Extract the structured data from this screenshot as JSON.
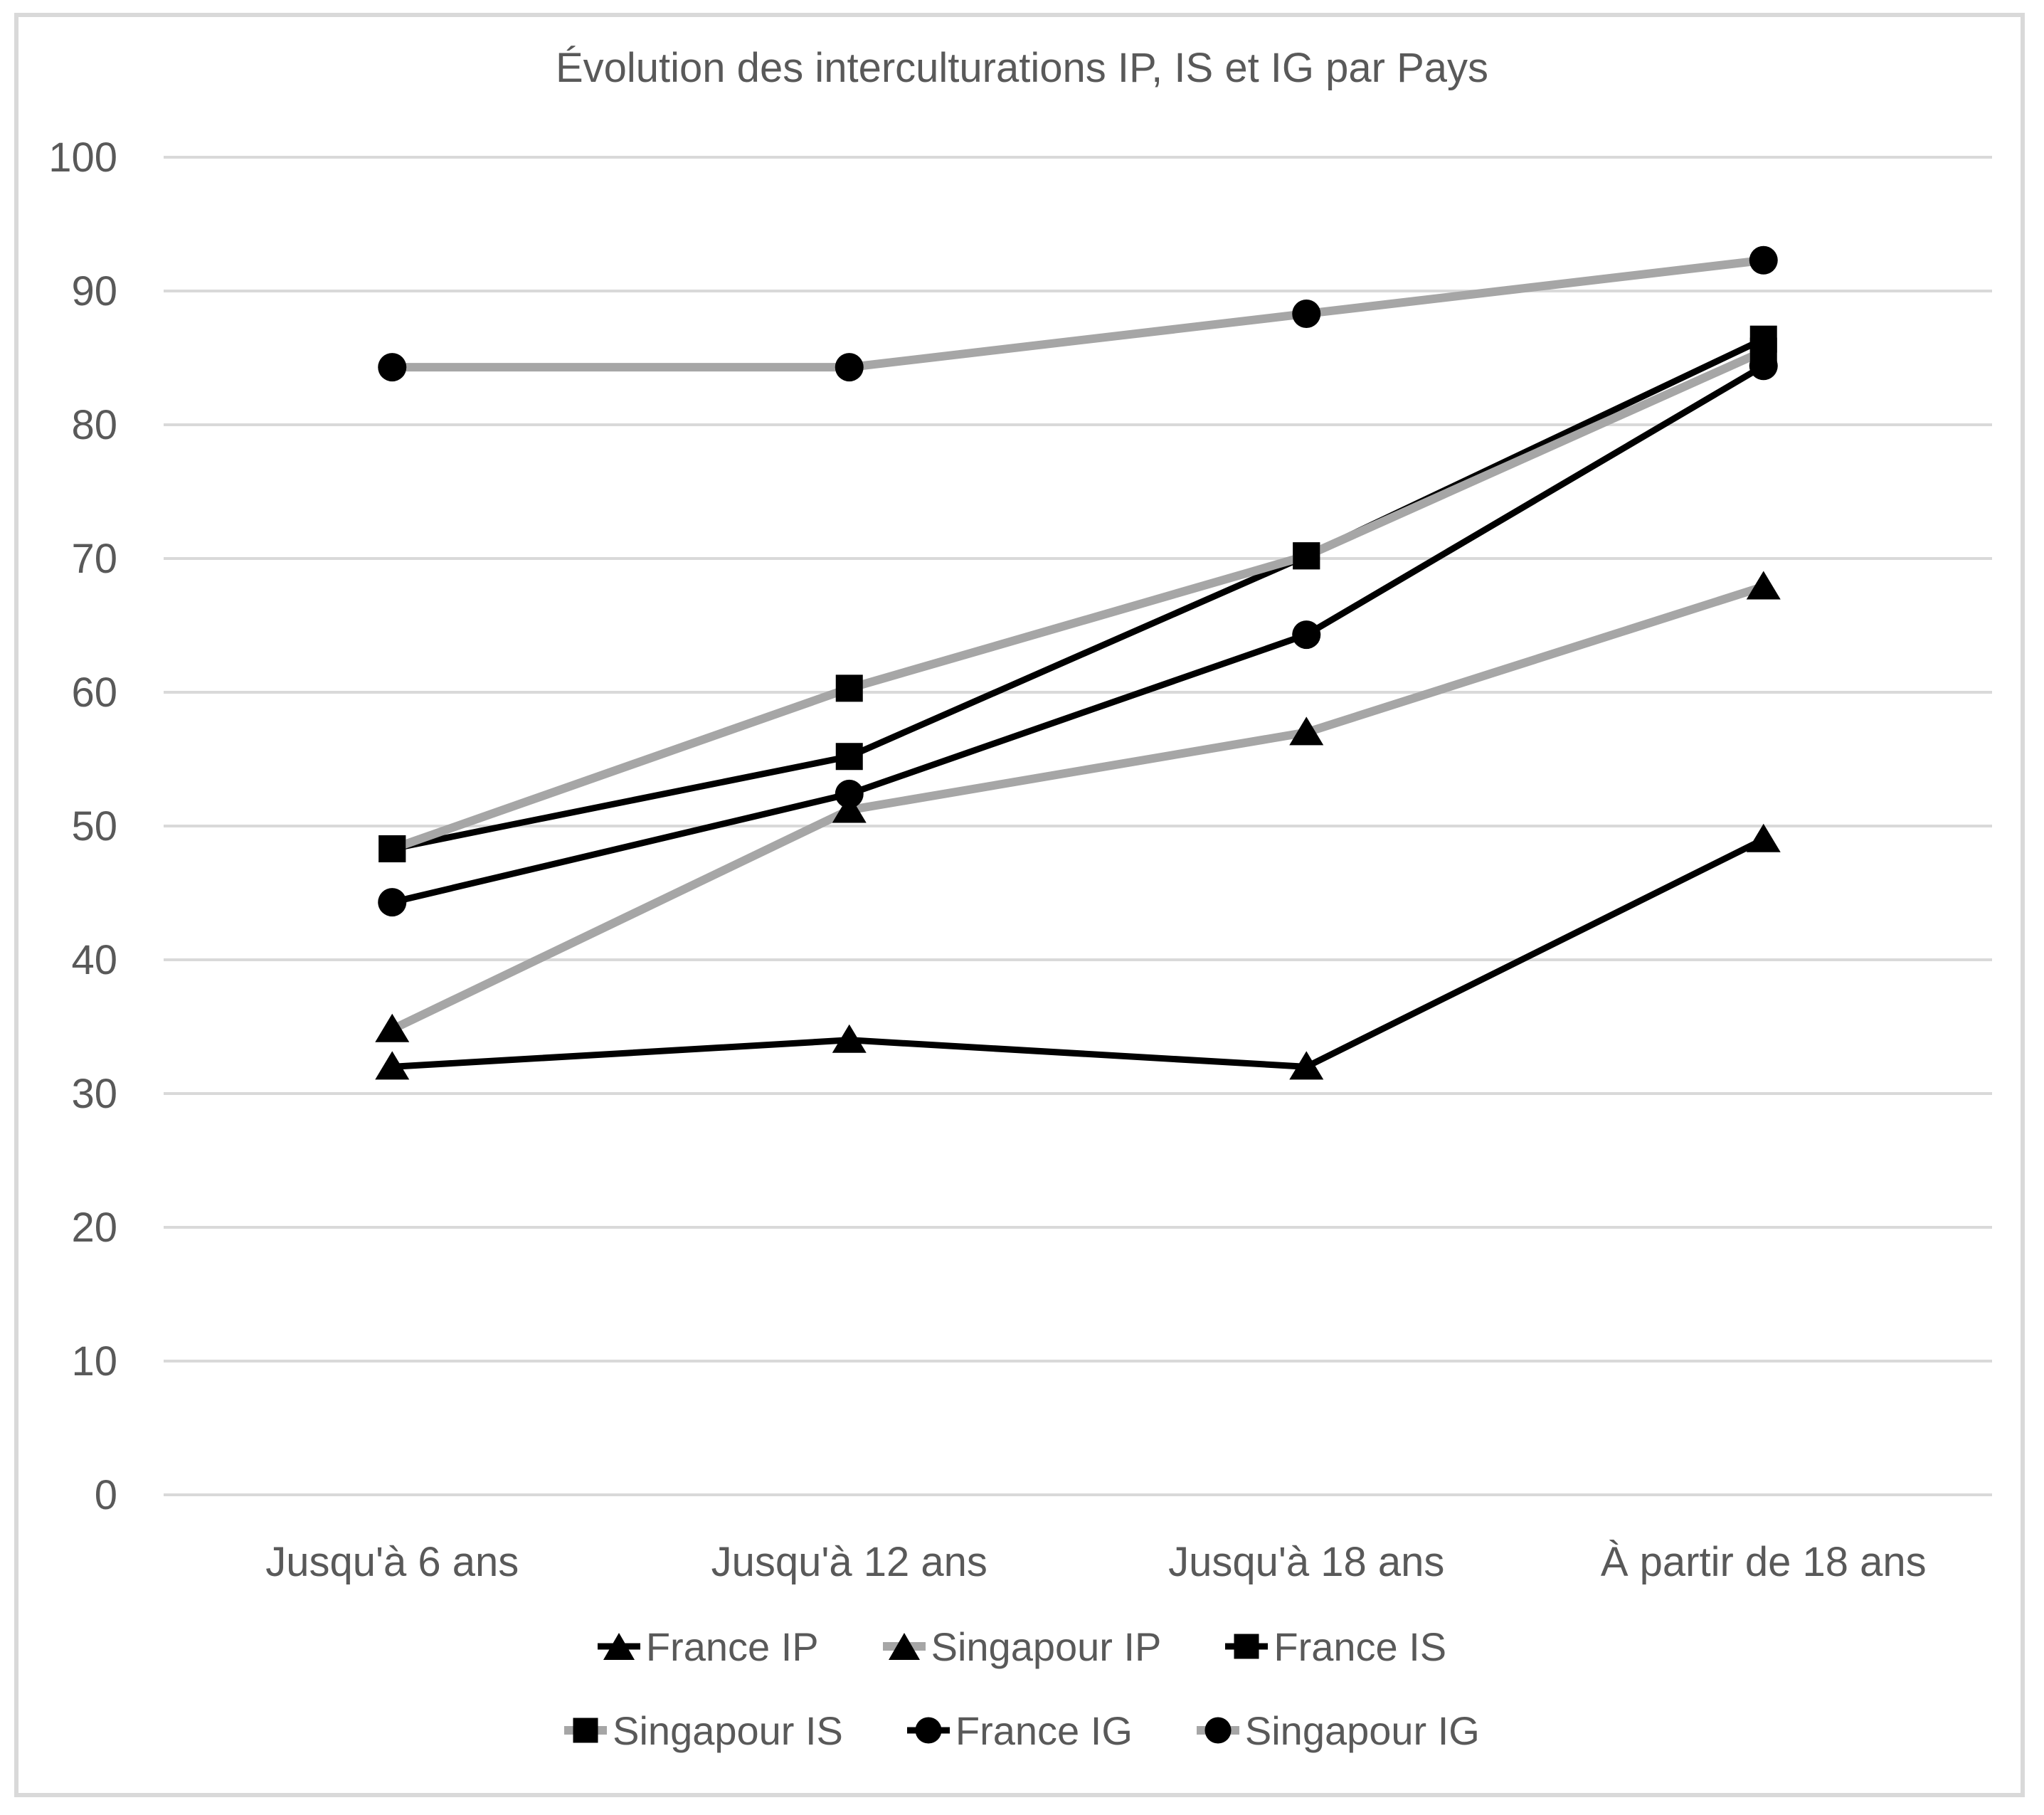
{
  "chart_data": {
    "type": "line",
    "title": "Évolution des interculturations IP, IS et IG par Pays",
    "categories": [
      "Jusqu'à 6 ans",
      "Jusqu'à 12 ans",
      "Jusqu'à 18 ans",
      "À partir de 18 ans"
    ],
    "series": [
      {
        "name": "France IP",
        "color": "#000000",
        "marker": "triangle",
        "values": [
          32,
          34,
          32,
          49
        ]
      },
      {
        "name": "Singapour IP",
        "color": "#a6a6a6",
        "marker": "triangle",
        "values": [
          34.8,
          51.2,
          57,
          67.9
        ]
      },
      {
        "name": "France IS",
        "color": "#000000",
        "marker": "square",
        "values": [
          48.3,
          55.2,
          70.2,
          86.4
        ]
      },
      {
        "name": "Singapour IS",
        "color": "#a6a6a6",
        "marker": "square",
        "values": [
          48.3,
          60.3,
          70.2,
          85.5
        ]
      },
      {
        "name": "France IG",
        "color": "#000000",
        "marker": "circle",
        "values": [
          44.3,
          52.4,
          64.3,
          84.4
        ]
      },
      {
        "name": "Singapour IG",
        "color": "#a6a6a6",
        "marker": "circle",
        "values": [
          84.3,
          84.3,
          88.3,
          92.3
        ]
      }
    ],
    "ylim": [
      0,
      100
    ],
    "yticks": [
      0,
      10,
      20,
      30,
      40,
      50,
      60,
      70,
      80,
      90,
      100
    ],
    "xlabel": "",
    "ylabel": "",
    "grid": true,
    "legend_position": "bottom",
    "legend_rows": [
      [
        "France IP",
        "Singapour IP",
        "France IS"
      ],
      [
        "Singapour IS",
        "France IG",
        "Singapour IG"
      ]
    ],
    "marker_color": "#000000",
    "gridline_color": "#d9d9d9",
    "text_color": "#595959"
  }
}
